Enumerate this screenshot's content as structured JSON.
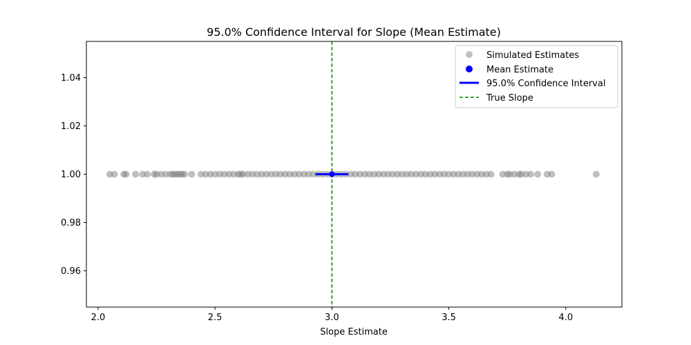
{
  "chart_data": {
    "type": "scatter",
    "title": "95.0% Confidence Interval for Slope (Mean Estimate)",
    "xlabel": "Slope Estimate",
    "ylabel": "",
    "xlim": [
      1.95,
      4.24
    ],
    "ylim": [
      0.945,
      1.055
    ],
    "x_ticks": [
      2.0,
      2.5,
      3.0,
      3.5,
      4.0
    ],
    "x_tick_labels": [
      "2.0",
      "2.5",
      "3.0",
      "3.5",
      "4.0"
    ],
    "y_ticks": [
      0.96,
      0.98,
      1.0,
      1.02,
      1.04
    ],
    "y_tick_labels": [
      "0.96",
      "0.98",
      "1.00",
      "1.02",
      "1.04"
    ],
    "grid": false,
    "legend_position": "top-right",
    "series": [
      {
        "name": "Simulated Estimates",
        "kind": "scatter",
        "color": "#808080",
        "y": 1.0,
        "x": [
          2.05,
          2.07,
          2.11,
          2.12,
          2.16,
          2.19,
          2.21,
          2.24,
          2.25,
          2.27,
          2.29,
          2.31,
          2.32,
          2.33,
          2.34,
          2.35,
          2.36,
          2.37,
          2.4,
          2.44,
          2.46,
          2.48,
          2.5,
          2.52,
          2.54,
          2.56,
          2.58,
          2.6,
          2.61,
          2.62,
          2.64,
          2.66,
          2.68,
          2.7,
          2.72,
          2.74,
          2.76,
          2.78,
          2.8,
          2.82,
          2.84,
          2.86,
          2.88,
          2.9,
          2.92,
          2.94,
          2.96,
          2.98,
          3.0,
          3.02,
          3.04,
          3.06,
          3.08,
          3.1,
          3.12,
          3.14,
          3.16,
          3.18,
          3.2,
          3.22,
          3.24,
          3.26,
          3.28,
          3.3,
          3.32,
          3.34,
          3.36,
          3.38,
          3.4,
          3.42,
          3.44,
          3.46,
          3.48,
          3.5,
          3.52,
          3.54,
          3.56,
          3.58,
          3.6,
          3.62,
          3.64,
          3.66,
          3.68,
          3.73,
          3.75,
          3.76,
          3.78,
          3.8,
          3.81,
          3.83,
          3.85,
          3.88,
          3.92,
          3.94,
          4.13
        ]
      },
      {
        "name": "Mean Estimate",
        "kind": "point",
        "color": "#0000ff",
        "x": 3.0,
        "y": 1.0
      },
      {
        "name": "95.0% Confidence Interval",
        "kind": "interval",
        "color": "#0000ff",
        "low": 2.93,
        "high": 3.07,
        "y": 1.0
      },
      {
        "name": "True Slope",
        "kind": "vline",
        "color": "#008000",
        "x": 3.0
      }
    ]
  }
}
